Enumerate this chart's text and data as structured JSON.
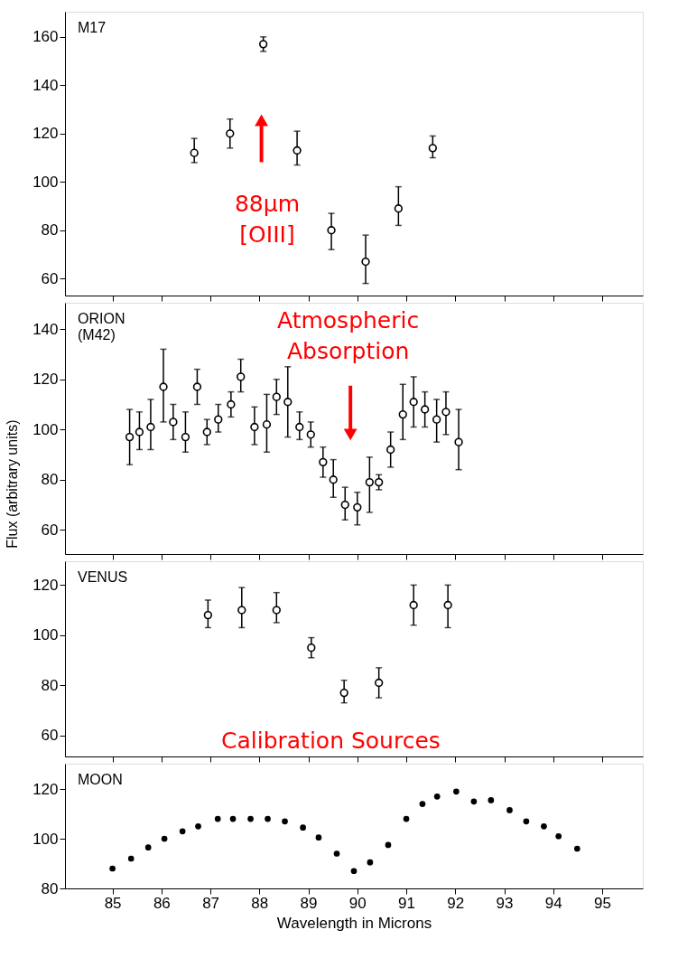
{
  "chart_data": [
    {
      "type": "scatter",
      "xlim": [
        84.03,
        95.83
      ],
      "ylim": [
        53,
        170.4
      ],
      "xticks": [
        85,
        86,
        87,
        88,
        89,
        90,
        91,
        92,
        93,
        94,
        95
      ],
      "yticks": [
        60,
        80,
        100,
        120,
        140,
        160
      ],
      "tick_labels": "y",
      "grid": false,
      "legend": false,
      "marker": "circle",
      "series": [
        {
          "name": "M17",
          "color": "#000000",
          "x": [
            86.67,
            87.4,
            88.08,
            88.77,
            89.47,
            90.17,
            90.84,
            91.54
          ],
          "values": [
            112,
            120,
            157,
            113,
            80,
            67,
            89,
            114
          ],
          "errors": [
            [
              108,
              118
            ],
            [
              114,
              126
            ],
            [
              154,
              160
            ],
            [
              107,
              121
            ],
            [
              72,
              87
            ],
            [
              58,
              78
            ],
            [
              82,
              98
            ],
            [
              110,
              119
            ]
          ]
        }
      ],
      "annotations": [
        "88μm [OIII]"
      ]
    },
    {
      "type": "scatter",
      "xlim": [
        84.03,
        95.83
      ],
      "ylim": [
        50.4,
        150.5
      ],
      "xticks": [
        85,
        86,
        87,
        88,
        89,
        90,
        91,
        92,
        93,
        94,
        95
      ],
      "yticks": [
        60,
        80,
        100,
        120,
        140
      ],
      "tick_labels": "y",
      "grid": false,
      "legend": false,
      "marker": "circle",
      "ylabel": "Flux (arbitrary units)",
      "series": [
        {
          "name": "ORION (M42)",
          "color": "#000000",
          "x": [
            85.35,
            85.55,
            85.78,
            86.04,
            86.24,
            86.49,
            86.73,
            86.93,
            87.16,
            87.42,
            87.62,
            87.9,
            88.15,
            88.35,
            88.58,
            88.82,
            89.05,
            89.3,
            89.51,
            89.75,
            90.0,
            90.25,
            90.44,
            90.68,
            90.93,
            91.15,
            91.38,
            91.62,
            91.81,
            92.07
          ],
          "values": [
            97,
            99,
            101,
            117,
            103,
            97,
            117,
            99,
            104,
            110,
            121,
            101,
            102,
            113,
            111,
            101,
            98,
            87,
            80,
            70,
            69,
            79,
            79,
            92,
            106,
            111,
            108,
            104,
            107,
            95
          ],
          "errors": [
            [
              86,
              108
            ],
            [
              92,
              107
            ],
            [
              92,
              112
            ],
            [
              103,
              132
            ],
            [
              96,
              110
            ],
            [
              91,
              107
            ],
            [
              110,
              124
            ],
            [
              94,
              104
            ],
            [
              99,
              110
            ],
            [
              105,
              115
            ],
            [
              115,
              128
            ],
            [
              94,
              109
            ],
            [
              91,
              114
            ],
            [
              106,
              120
            ],
            [
              97,
              125
            ],
            [
              96,
              107
            ],
            [
              93,
              103
            ],
            [
              81,
              93
            ],
            [
              73,
              88
            ],
            [
              64,
              77
            ],
            [
              62,
              75
            ],
            [
              67,
              89
            ],
            [
              76,
              82
            ],
            [
              85,
              99
            ],
            [
              96,
              118
            ],
            [
              101,
              121
            ],
            [
              101,
              115
            ],
            [
              95,
              112
            ],
            [
              98,
              115
            ],
            [
              84,
              108
            ]
          ]
        }
      ],
      "annotations": [
        "Atmospheric Absorption"
      ]
    },
    {
      "type": "scatter",
      "xlim": [
        84.03,
        95.83
      ],
      "ylim": [
        51.6,
        129.5
      ],
      "xticks": [
        85,
        86,
        87,
        88,
        89,
        90,
        91,
        92,
        93,
        94,
        95
      ],
      "yticks": [
        60,
        80,
        100,
        120
      ],
      "tick_labels": "y",
      "grid": false,
      "legend": false,
      "marker": "circle",
      "series": [
        {
          "name": "VENUS",
          "color": "#000000",
          "x": [
            86.95,
            87.64,
            88.35,
            89.06,
            89.73,
            90.44,
            91.15,
            91.85
          ],
          "values": [
            108,
            110,
            110,
            95,
            77,
            81,
            112,
            112
          ],
          "errors": [
            [
              103,
              114
            ],
            [
              103,
              119
            ],
            [
              105,
              117
            ],
            [
              91,
              99
            ],
            [
              73,
              82
            ],
            [
              75,
              87
            ],
            [
              104,
              120
            ],
            [
              103,
              120
            ]
          ]
        }
      ],
      "annotations": [
        "Calibration Sources"
      ]
    },
    {
      "type": "scatter",
      "xlim": [
        84.03,
        95.83
      ],
      "ylim": [
        80,
        130.2
      ],
      "xticks": [
        85,
        86,
        87,
        88,
        89,
        90,
        91,
        92,
        93,
        94,
        95
      ],
      "yticks": [
        80,
        100,
        120
      ],
      "grid": false,
      "legend": false,
      "marker": "circle",
      "xlabel": "Wavelength in Microns",
      "series": [
        {
          "name": "MOON",
          "color": "#000000",
          "x": [
            85.0,
            85.38,
            85.73,
            86.06,
            86.43,
            86.75,
            87.15,
            87.46,
            87.82,
            88.17,
            88.52,
            88.89,
            89.21,
            89.58,
            89.93,
            90.26,
            90.63,
            91.0,
            91.33,
            91.63,
            92.02,
            92.38,
            92.73,
            93.11,
            93.45,
            93.81,
            94.11,
            94.49
          ],
          "values": [
            88,
            92,
            96.5,
            100,
            103,
            105,
            108,
            108,
            108,
            108,
            107,
            104.5,
            100.5,
            94,
            87,
            90.5,
            97.5,
            108,
            114,
            117,
            119,
            115,
            115.5,
            111.5,
            107,
            105,
            101,
            96
          ]
        }
      ]
    }
  ]
}
